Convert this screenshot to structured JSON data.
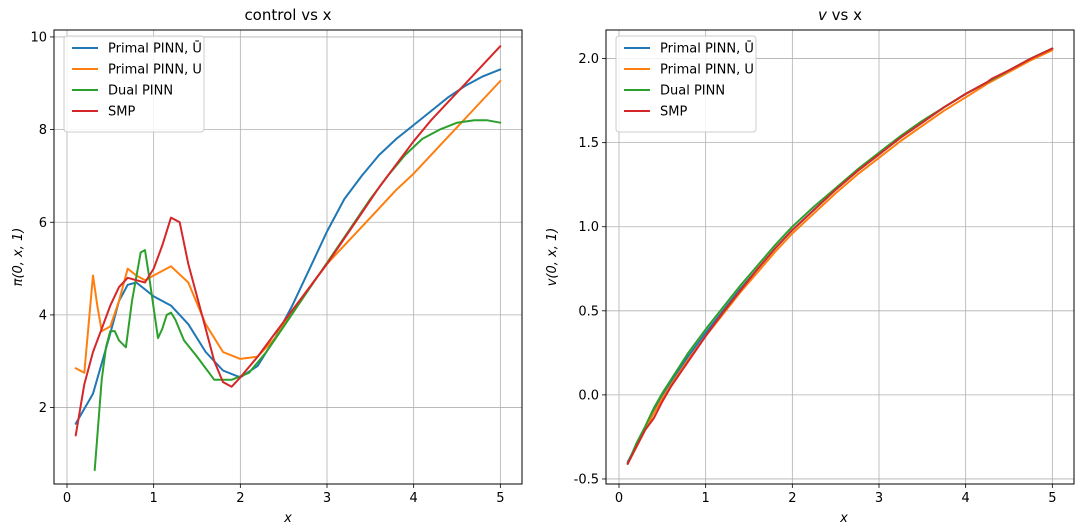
{
  "chart_data": [
    {
      "type": "line",
      "title": "control vs x",
      "xlabel": "x",
      "ylabel": "π(0, x, 1)",
      "xlim": [
        -0.15,
        5.25
      ],
      "ylim": [
        0.35,
        10.15
      ],
      "xticks": [
        0,
        1,
        2,
        3,
        4,
        5
      ],
      "yticks": [
        2,
        4,
        6,
        8,
        10
      ],
      "grid": true,
      "legend_position": "top-left",
      "series": [
        {
          "name": "Primal PINN, Ū",
          "color": "#1f77b4",
          "x": [
            0.1,
            0.3,
            0.5,
            0.6,
            0.7,
            0.8,
            0.9,
            1.0,
            1.2,
            1.4,
            1.6,
            1.8,
            2.0,
            2.2,
            2.4,
            2.6,
            2.8,
            3.0,
            3.2,
            3.4,
            3.6,
            3.8,
            4.0,
            4.2,
            4.4,
            4.6,
            4.8,
            5.0
          ],
          "y": [
            1.65,
            2.3,
            3.6,
            4.3,
            4.65,
            4.7,
            4.55,
            4.4,
            4.2,
            3.8,
            3.2,
            2.8,
            2.65,
            2.9,
            3.5,
            4.2,
            5.0,
            5.8,
            6.5,
            7.0,
            7.45,
            7.8,
            8.1,
            8.4,
            8.7,
            8.95,
            9.15,
            9.3
          ]
        },
        {
          "name": "Primal PINN, U",
          "color": "#ff7f0e",
          "x": [
            0.1,
            0.2,
            0.3,
            0.35,
            0.4,
            0.5,
            0.6,
            0.7,
            0.8,
            0.9,
            1.0,
            1.2,
            1.4,
            1.6,
            1.8,
            2.0,
            2.2,
            2.4,
            2.6,
            2.8,
            3.0,
            3.2,
            3.4,
            3.6,
            3.8,
            4.0,
            4.2,
            4.4,
            4.6,
            4.8,
            5.0
          ],
          "y": [
            2.85,
            2.75,
            4.85,
            4.2,
            3.65,
            3.75,
            4.3,
            5.0,
            4.85,
            4.75,
            4.85,
            5.05,
            4.7,
            3.8,
            3.2,
            3.05,
            3.1,
            3.5,
            4.1,
            4.6,
            5.1,
            5.5,
            5.9,
            6.3,
            6.7,
            7.05,
            7.45,
            7.85,
            8.25,
            8.65,
            9.05
          ]
        },
        {
          "name": "Dual PINN",
          "color": "#2ca02c",
          "x": [
            0.32,
            0.4,
            0.45,
            0.5,
            0.55,
            0.6,
            0.68,
            0.75,
            0.85,
            0.9,
            0.95,
            1.05,
            1.1,
            1.15,
            1.2,
            1.25,
            1.35,
            1.5,
            1.7,
            1.9,
            2.1,
            2.3,
            2.5,
            2.7,
            2.9,
            3.1,
            3.3,
            3.5,
            3.7,
            3.9,
            4.1,
            4.3,
            4.5,
            4.7,
            4.85,
            5.0
          ],
          "y": [
            0.65,
            2.6,
            3.3,
            3.65,
            3.65,
            3.45,
            3.3,
            4.3,
            5.35,
            5.4,
            4.8,
            3.5,
            3.7,
            4.0,
            4.05,
            3.9,
            3.45,
            3.1,
            2.6,
            2.6,
            2.75,
            3.2,
            3.75,
            4.3,
            4.85,
            5.4,
            5.95,
            6.5,
            7.0,
            7.45,
            7.8,
            8.0,
            8.15,
            8.2,
            8.2,
            8.15
          ]
        },
        {
          "name": "SMP",
          "color": "#d62728",
          "x": [
            0.1,
            0.2,
            0.3,
            0.4,
            0.5,
            0.6,
            0.7,
            0.8,
            0.9,
            1.0,
            1.1,
            1.2,
            1.3,
            1.4,
            1.5,
            1.6,
            1.7,
            1.8,
            1.9,
            2.0,
            2.2,
            2.4,
            2.6,
            2.8,
            3.0,
            3.2,
            3.4,
            3.6,
            3.8,
            4.0,
            4.2,
            4.4,
            4.6,
            4.8,
            5.0
          ],
          "y": [
            1.4,
            2.5,
            3.2,
            3.7,
            4.2,
            4.6,
            4.8,
            4.75,
            4.7,
            5.0,
            5.5,
            6.1,
            6.0,
            5.1,
            4.4,
            3.7,
            3.0,
            2.55,
            2.45,
            2.65,
            3.1,
            3.6,
            4.1,
            4.6,
            5.1,
            5.65,
            6.2,
            6.75,
            7.25,
            7.75,
            8.2,
            8.6,
            9.0,
            9.4,
            9.8
          ]
        }
      ]
    },
    {
      "type": "line",
      "title_italic": "v",
      "title_rest": " vs x",
      "xlabel": "x",
      "ylabel": "v(0, x, 1)",
      "xlim": [
        -0.15,
        5.25
      ],
      "ylim": [
        -0.53,
        2.17
      ],
      "xticks": [
        0,
        1,
        2,
        3,
        4,
        5
      ],
      "yticks": [
        -0.5,
        0.0,
        0.5,
        1.0,
        1.5,
        2.0
      ],
      "grid": true,
      "legend_position": "top-left",
      "series": [
        {
          "name": "Primal PINN, Ū",
          "color": "#1f77b4",
          "x": [
            0.1,
            0.2,
            0.3,
            0.4,
            0.5,
            0.6,
            0.8,
            1.0,
            1.2,
            1.4,
            1.6,
            1.8,
            2.0,
            2.25,
            2.5,
            2.75,
            3.0,
            3.25,
            3.5,
            3.75,
            4.0,
            4.25,
            4.5,
            4.75,
            5.0
          ],
          "y": [
            -0.4,
            -0.3,
            -0.2,
            -0.09,
            0.0,
            0.08,
            0.23,
            0.37,
            0.5,
            0.63,
            0.75,
            0.87,
            0.98,
            1.1,
            1.22,
            1.33,
            1.43,
            1.53,
            1.62,
            1.71,
            1.79,
            1.86,
            1.93,
            2.0,
            2.06
          ]
        },
        {
          "name": "Primal PINN, U",
          "color": "#ff7f0e",
          "x": [
            0.1,
            0.2,
            0.3,
            0.4,
            0.5,
            0.6,
            0.8,
            1.0,
            1.2,
            1.4,
            1.6,
            1.8,
            2.0,
            2.25,
            2.5,
            2.75,
            3.0,
            3.25,
            3.5,
            3.75,
            4.0,
            4.25,
            4.5,
            4.75,
            5.0
          ],
          "y": [
            -0.41,
            -0.31,
            -0.21,
            -0.11,
            -0.02,
            0.06,
            0.21,
            0.35,
            0.48,
            0.61,
            0.73,
            0.85,
            0.96,
            1.08,
            1.2,
            1.31,
            1.41,
            1.51,
            1.6,
            1.69,
            1.77,
            1.85,
            1.92,
            1.99,
            2.05
          ]
        },
        {
          "name": "Dual PINN",
          "color": "#2ca02c",
          "x": [
            0.1,
            0.2,
            0.3,
            0.4,
            0.5,
            0.6,
            0.8,
            1.0,
            1.2,
            1.4,
            1.6,
            1.8,
            2.0,
            2.25,
            2.5,
            2.75,
            3.0,
            3.25,
            3.5,
            3.75,
            4.0,
            4.25,
            4.5,
            4.75,
            5.0
          ],
          "y": [
            -0.41,
            -0.29,
            -0.19,
            -0.08,
            0.01,
            0.09,
            0.25,
            0.39,
            0.52,
            0.65,
            0.77,
            0.89,
            1.0,
            1.12,
            1.23,
            1.34,
            1.44,
            1.54,
            1.63,
            1.71,
            1.79,
            1.86,
            1.93,
            2.0,
            2.06
          ]
        },
        {
          "name": "SMP",
          "color": "#d62728",
          "x": [
            0.1,
            0.2,
            0.3,
            0.4,
            0.5,
            0.6,
            0.8,
            1.0,
            1.2,
            1.4,
            1.6,
            1.8,
            2.0,
            2.25,
            2.5,
            2.75,
            3.0,
            3.25,
            3.5,
            3.75,
            4.0,
            4.25,
            4.3,
            4.5,
            4.75,
            5.0
          ],
          "y": [
            -0.41,
            -0.31,
            -0.21,
            -0.14,
            -0.04,
            0.05,
            0.2,
            0.35,
            0.49,
            0.62,
            0.75,
            0.87,
            0.98,
            1.1,
            1.22,
            1.33,
            1.43,
            1.53,
            1.62,
            1.71,
            1.79,
            1.86,
            1.88,
            1.93,
            2.0,
            2.06
          ]
        }
      ]
    }
  ]
}
